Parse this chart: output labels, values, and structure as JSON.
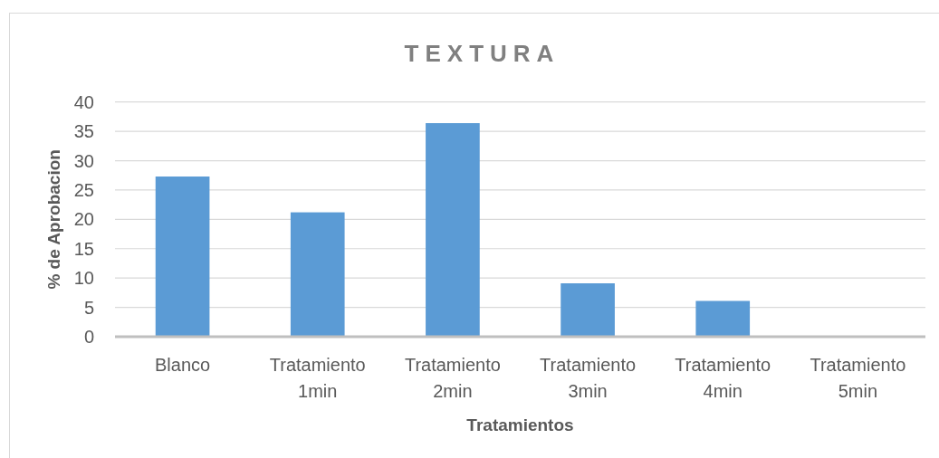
{
  "chart_data": {
    "type": "bar",
    "title": "TEXTURA",
    "xlabel": "Tratamientos",
    "ylabel": "% de Aprobacion",
    "categories": [
      "Blanco",
      "Tratamiento 1min",
      "Tratamiento 2min",
      "Tratamiento 3min",
      "Tratamiento 4min",
      "Tratamiento 5min"
    ],
    "values": [
      27.3,
      21.2,
      36.4,
      9.1,
      6.1,
      0
    ],
    "color": "#5b9bd5",
    "ylim": [
      0,
      40
    ],
    "yticks": [
      0,
      5,
      10,
      15,
      20,
      25,
      30,
      35,
      40
    ],
    "grid": true
  }
}
